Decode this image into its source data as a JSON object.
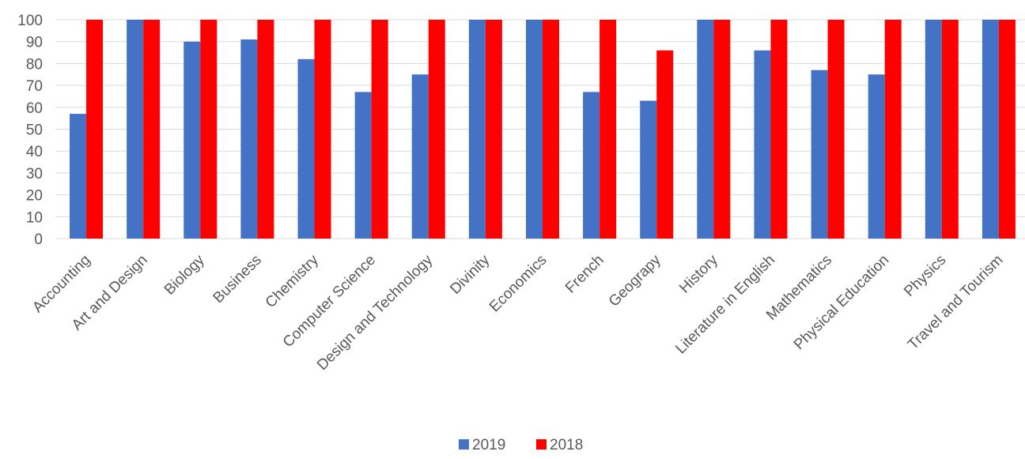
{
  "chart_data": {
    "type": "bar",
    "title": "",
    "xlabel": "",
    "ylabel": "",
    "ylim": [
      0,
      100
    ],
    "yticks": [
      0,
      10,
      20,
      30,
      40,
      50,
      60,
      70,
      80,
      90,
      100
    ],
    "grid": true,
    "legend_position": "bottom",
    "categories": [
      "Accounting",
      "Art and Design",
      "Biology",
      "Business",
      "Chemistry",
      "Computer Science",
      "Design and Technology",
      "Divinity",
      "Economics",
      "French",
      "Geograpy",
      "History",
      "Literature in English",
      "Mathematics",
      "Physical Education",
      "Physics",
      "Travel and Tourism"
    ],
    "series": [
      {
        "name": "2019",
        "color": "#4472c4",
        "values": [
          57,
          100,
          90,
          91,
          82,
          67,
          75,
          100,
          100,
          67,
          63,
          100,
          86,
          77,
          75,
          100,
          100
        ]
      },
      {
        "name": "2018",
        "color": "#ff0000",
        "values": [
          100,
          100,
          100,
          100,
          100,
          100,
          100,
          100,
          100,
          100,
          86,
          100,
          100,
          100,
          100,
          100,
          100
        ]
      }
    ]
  }
}
